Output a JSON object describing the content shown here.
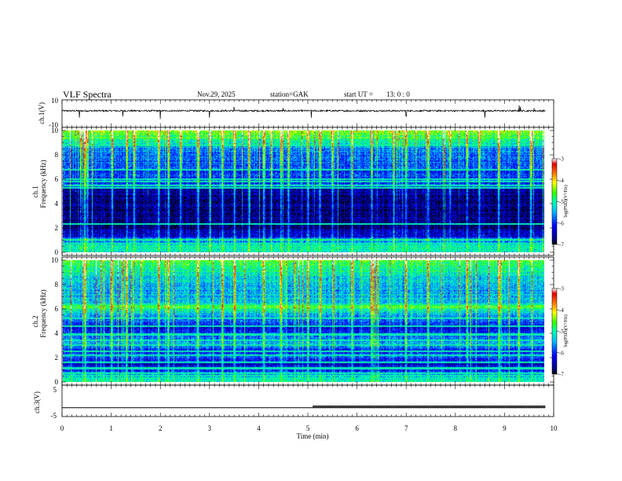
{
  "header": {
    "title": "VLF Spectra",
    "date": "Nov.29, 2025",
    "station": "station=GAK",
    "start": "start UT =",
    "start_time": "13: 0  : 0"
  },
  "chart_data": [
    {
      "type": "line",
      "name": "ch1-waveform",
      "ylabel": "ch.1(V)",
      "ylim": [
        -10,
        10
      ],
      "y_ticks": [
        "10",
        "-10"
      ],
      "x_range_min": [
        0,
        9.83
      ],
      "baseline_v": 2,
      "noise_v": 0.6,
      "spikes": [
        {
          "t": 0.35,
          "v": -3
        },
        {
          "t": 1.24,
          "v": -2
        },
        {
          "t": 2.0,
          "v": -4
        },
        {
          "t": 3.0,
          "v": -3
        },
        {
          "t": 3.5,
          "v": 5
        },
        {
          "t": 4.5,
          "v": 4
        },
        {
          "t": 5.07,
          "v": -3
        },
        {
          "t": 7.0,
          "v": -2
        },
        {
          "t": 8.6,
          "v": -3
        },
        {
          "t": 9.3,
          "v": 6
        },
        {
          "t": 9.32,
          "v": 5
        },
        {
          "t": 9.6,
          "v": 4
        }
      ]
    },
    {
      "type": "heatmap",
      "name": "ch1-spectrogram",
      "ylabel_top": "ch.1",
      "ylabel_bottom": "Frequency (kHz)",
      "ylim": [
        0,
        10
      ],
      "y_ticks": [
        "0",
        "2",
        "4",
        "6",
        "8",
        "10"
      ],
      "x_range_min": [
        0,
        9.83
      ],
      "colorbar": {
        "label": "log(PSD)(V²/Hz)",
        "range": [
          -7,
          -3
        ],
        "ticks": [
          "-3",
          "-4",
          "-5",
          "-6",
          "-7"
        ]
      },
      "profile_logpsd": [
        {
          "f": 0.0,
          "v": -5.3
        },
        {
          "f": 0.5,
          "v": -5.2
        },
        {
          "f": 0.9,
          "v": -5.6
        },
        {
          "f": 1.0,
          "v": -5.0
        },
        {
          "f": 1.2,
          "v": -6.2
        },
        {
          "f": 2.0,
          "v": -6.6
        },
        {
          "f": 4.0,
          "v": -6.7
        },
        {
          "f": 5.2,
          "v": -6.5
        },
        {
          "f": 5.6,
          "v": -6.0
        },
        {
          "f": 7.0,
          "v": -5.9
        },
        {
          "f": 8.5,
          "v": -5.6
        },
        {
          "f": 9.3,
          "v": -4.8
        },
        {
          "f": 10.0,
          "v": -4.5
        }
      ],
      "hlines_khz": [
        0.1,
        0.3,
        0.5,
        0.7,
        1.0,
        2.3,
        5.3,
        5.5,
        5.8,
        6.0,
        6.8,
        8.8
      ],
      "bursts_min": [
        0.45,
        0.5,
        1.0,
        1.3,
        1.45,
        1.95,
        2.15,
        2.4,
        2.75,
        3.0,
        3.25,
        3.5,
        3.8,
        4.1,
        4.45,
        4.6,
        5.0,
        5.25,
        5.5,
        5.9,
        6.3,
        6.75,
        7.0,
        7.45,
        7.9,
        8.25,
        8.5,
        8.9,
        9.3,
        9.55
      ]
    },
    {
      "type": "heatmap",
      "name": "ch2-spectrogram",
      "ylabel_top": "ch.2",
      "ylabel_bottom": "Frequency (kHz)",
      "ylim": [
        0,
        10
      ],
      "y_ticks": [
        "0",
        "2",
        "4",
        "6",
        "8",
        "10"
      ],
      "x_range_min": [
        0,
        9.83
      ],
      "colorbar": {
        "label": "log(PSD)(V²/Hz)",
        "range": [
          -7,
          -3
        ],
        "ticks": [
          "-3",
          "-4",
          "-5",
          "-6",
          "-7"
        ]
      },
      "profile_logpsd": [
        {
          "f": 0.0,
          "v": -5.3
        },
        {
          "f": 0.5,
          "v": -5.5
        },
        {
          "f": 0.9,
          "v": -6.0
        },
        {
          "f": 1.5,
          "v": -6.4
        },
        {
          "f": 2.0,
          "v": -5.8
        },
        {
          "f": 2.6,
          "v": -6.2
        },
        {
          "f": 3.0,
          "v": -5.4
        },
        {
          "f": 3.8,
          "v": -5.7
        },
        {
          "f": 4.4,
          "v": -6.3
        },
        {
          "f": 5.0,
          "v": -5.8
        },
        {
          "f": 5.6,
          "v": -5.3
        },
        {
          "f": 6.2,
          "v": -4.7
        },
        {
          "f": 6.5,
          "v": -5.3
        },
        {
          "f": 8.0,
          "v": -5.5
        },
        {
          "f": 9.3,
          "v": -4.9
        },
        {
          "f": 10.0,
          "v": -4.6
        }
      ],
      "hlines_khz": [
        0.1,
        0.3,
        0.5,
        0.7,
        1.1,
        1.6,
        2.2,
        2.5,
        3.0,
        3.4,
        3.9,
        4.6,
        5.2,
        6.1,
        6.3
      ],
      "bursts_min": [
        0.45,
        1.0,
        1.3,
        1.95,
        2.15,
        2.75,
        3.25,
        3.5,
        4.1,
        4.45,
        5.0,
        5.25,
        5.9,
        6.3,
        7.0,
        7.45,
        8.25,
        8.9,
        9.3
      ]
    },
    {
      "type": "line",
      "name": "ch3-timecode",
      "ylabel": "ch.3(V)",
      "ylim": [
        -5,
        5
      ],
      "y_ticks": [
        "5",
        "-5"
      ],
      "x_range_min": [
        0,
        9.83
      ],
      "level_v": -2.2,
      "pulses_start_min": 5.1,
      "pulse_high_v": -1.5,
      "x_ticks": [
        "0",
        "1",
        "2",
        "3",
        "4",
        "5",
        "6",
        "7",
        "8",
        "9",
        "10"
      ],
      "xlabel": "Time (min)"
    }
  ]
}
